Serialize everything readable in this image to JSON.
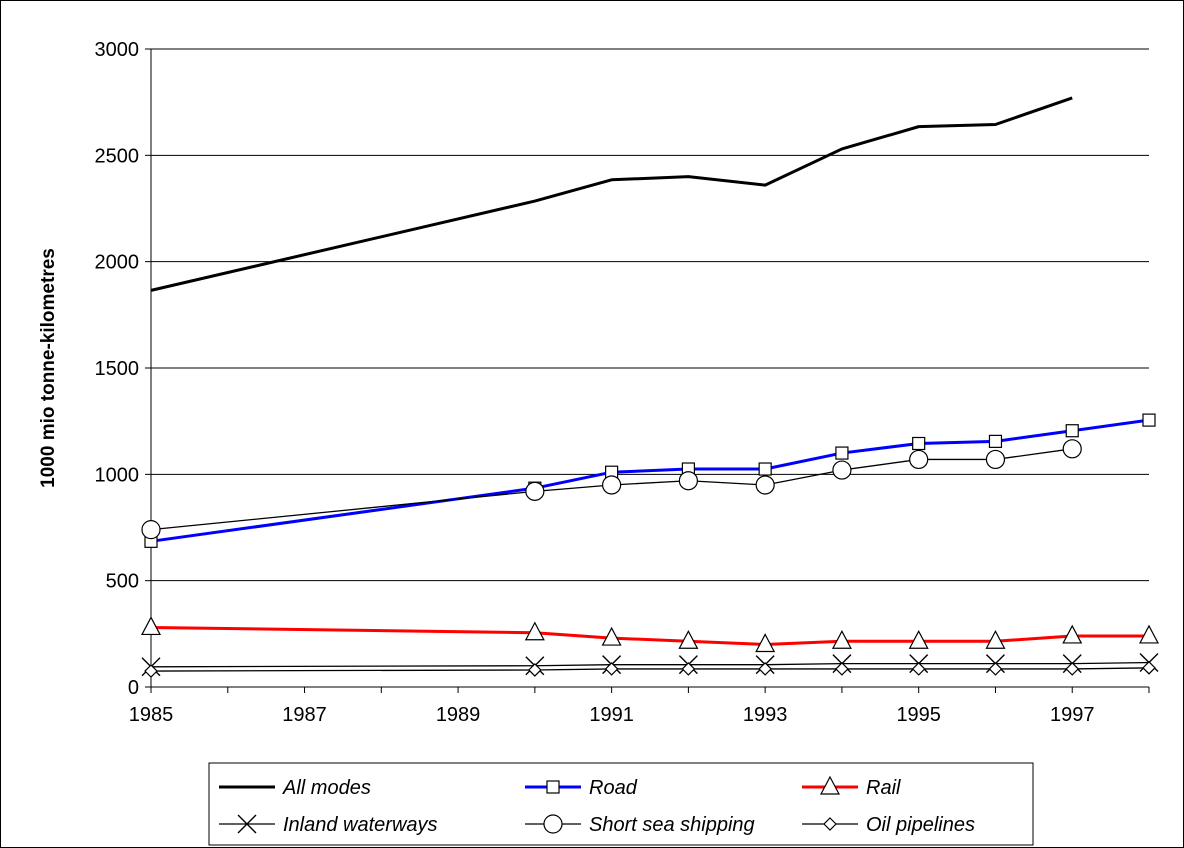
{
  "chart_data": {
    "type": "line",
    "title": "",
    "xlabel": "",
    "ylabel": "1000 mio tonne-kilometres",
    "xlim": [
      1985,
      1998
    ],
    "ylim": [
      0,
      3000
    ],
    "x_ticks": [
      "1985",
      "1987",
      "1989",
      "1991",
      "1993",
      "1995",
      "1997"
    ],
    "y_ticks": [
      "0",
      "500",
      "1000",
      "1500",
      "2000",
      "2500",
      "3000"
    ],
    "grid": "horizontal",
    "legend_position": "bottom",
    "series": [
      {
        "name": "All modes",
        "color": "#000000",
        "marker": "none",
        "x": [
          1985,
          1990,
          1991,
          1992,
          1993,
          1994,
          1995,
          1996,
          1997
        ],
        "y": [
          1865,
          2285,
          2385,
          2400,
          2360,
          2530,
          2635,
          2645,
          2770
        ]
      },
      {
        "name": "Road",
        "color": "#0000ff",
        "marker": "square",
        "x": [
          1985,
          1990,
          1991,
          1992,
          1993,
          1994,
          1995,
          1996,
          1997,
          1998
        ],
        "y": [
          685,
          935,
          1010,
          1025,
          1025,
          1100,
          1145,
          1155,
          1205,
          1255
        ]
      },
      {
        "name": "Rail",
        "color": "#ff0000",
        "marker": "triangle",
        "x": [
          1985,
          1990,
          1991,
          1992,
          1993,
          1994,
          1995,
          1996,
          1997,
          1998
        ],
        "y": [
          280,
          255,
          230,
          215,
          200,
          215,
          215,
          215,
          240,
          240
        ]
      },
      {
        "name": "Inland waterways",
        "color": "#000000",
        "marker": "x",
        "x": [
          1985,
          1990,
          1991,
          1992,
          1993,
          1994,
          1995,
          1996,
          1997,
          1998
        ],
        "y": [
          95,
          100,
          105,
          105,
          105,
          110,
          110,
          110,
          110,
          115
        ]
      },
      {
        "name": "Short sea shipping",
        "color": "#000000",
        "marker": "circle",
        "x": [
          1985,
          1990,
          1991,
          1992,
          1993,
          1994,
          1995,
          1996,
          1997
        ],
        "y": [
          740,
          920,
          950,
          970,
          950,
          1020,
          1070,
          1070,
          1120
        ]
      },
      {
        "name": "Oil pipelines",
        "color": "#000000",
        "marker": "diamond",
        "x": [
          1985,
          1990,
          1991,
          1992,
          1993,
          1994,
          1995,
          1996,
          1997,
          1998
        ],
        "y": [
          75,
          80,
          85,
          85,
          85,
          85,
          85,
          85,
          85,
          90
        ]
      }
    ]
  }
}
